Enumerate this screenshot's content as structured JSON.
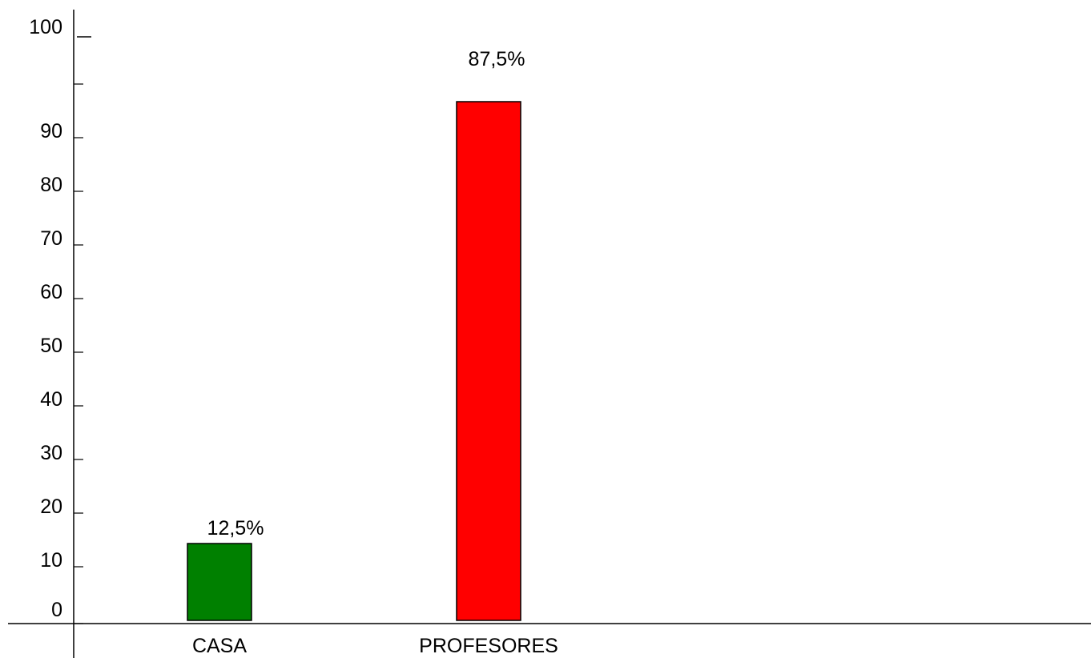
{
  "chart_data": {
    "type": "bar",
    "title": "",
    "xlabel": "",
    "ylabel": "",
    "ylim": [
      0,
      100
    ],
    "y_ticks": [
      "0",
      "10",
      "20",
      "30",
      "40",
      "50",
      "60",
      "70",
      "80",
      "90",
      "100"
    ],
    "categories": [
      "CASA",
      "PROFESORES"
    ],
    "values": [
      12.5,
      87.5
    ],
    "data_labels": [
      "12,5%",
      "87,5%"
    ],
    "colors": [
      "#008000",
      "#ff0000"
    ],
    "grid": false,
    "legend": "none"
  }
}
